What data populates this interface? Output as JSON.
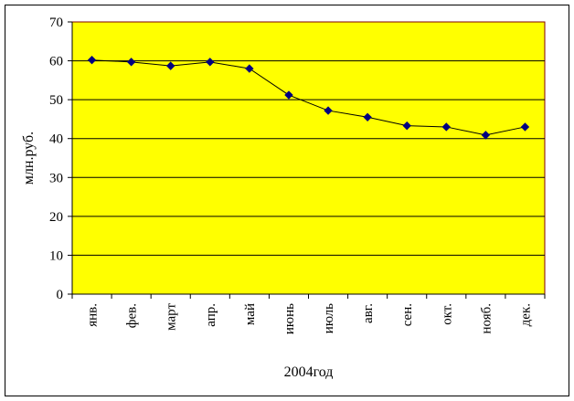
{
  "chart_data": {
    "type": "line",
    "title": "",
    "xlabel": "2004год",
    "ylabel": "млн.руб.",
    "categories": [
      "янв.",
      "фев.",
      "март",
      "апр.",
      "май",
      "июнь",
      "июль",
      "авг.",
      "сен.",
      "окт.",
      "нояб.",
      "дек."
    ],
    "series": [
      {
        "values": [
          60.2,
          59.7,
          58.7,
          59.7,
          58.0,
          51.2,
          47.2,
          45.5,
          43.3,
          43.0,
          40.9,
          43.0
        ]
      }
    ],
    "ylim": [
      0,
      70
    ],
    "yticks": [
      0,
      10,
      20,
      30,
      40,
      50,
      60,
      70
    ],
    "grid": true,
    "legend": "none",
    "colors": {
      "plot_background": "#ffff00",
      "plot_border": "#800000",
      "gridline": "#000000",
      "line": "#000000",
      "marker": "#000080"
    }
  }
}
